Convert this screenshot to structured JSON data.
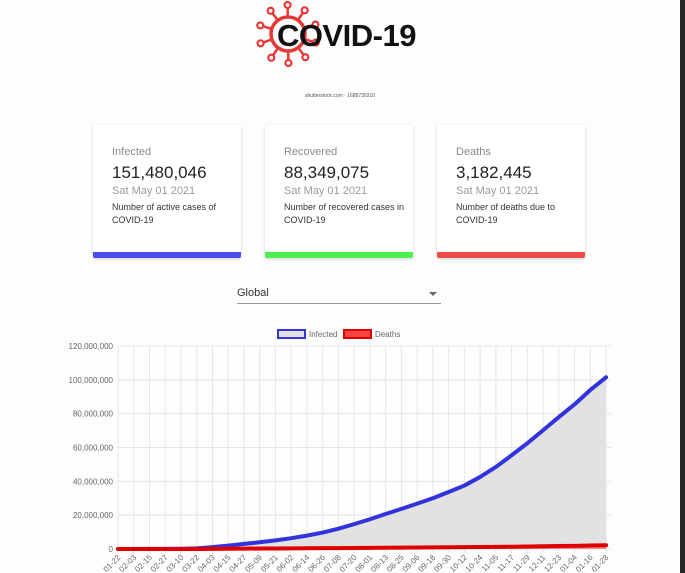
{
  "logo": {
    "text": "COVID-19",
    "watermark": "shutterstock.com · 1688730310",
    "color": "#e53935"
  },
  "cards": [
    {
      "title": "Infected",
      "value": "151,480,046",
      "date": "Sat May 01 2021",
      "description": "Number of active cases of COVID-19",
      "color": "#4b4bf0"
    },
    {
      "title": "Recovered",
      "value": "88,349,075",
      "date": "Sat May 01 2021",
      "description": "Number of recovered cases in COVID-19",
      "color": "#4cf04c"
    },
    {
      "title": "Deaths",
      "value": "3,182,445",
      "date": "Sat May 01 2021",
      "description": "Number of deaths due to COVID-19",
      "color": "#f04b4b"
    }
  ],
  "country_select": {
    "value": "Global"
  },
  "chart_data": {
    "type": "line",
    "legend": {
      "placement": "top",
      "entries": [
        "Infected",
        "Deaths"
      ]
    },
    "grid": true,
    "ylim": [
      0,
      120000000
    ],
    "yticks": [
      "0",
      "20,000,000",
      "40,000,000",
      "60,000,000",
      "80,000,000",
      "100,000,000",
      "120,000,000"
    ],
    "x": [
      "01-22",
      "02-03",
      "02-15",
      "02-27",
      "03-10",
      "03-22",
      "04-03",
      "04-15",
      "04-27",
      "05-09",
      "05-21",
      "06-02",
      "06-14",
      "06-26",
      "07-08",
      "07-20",
      "08-01",
      "08-13",
      "08-25",
      "09-06",
      "09-18",
      "09-30",
      "10-12",
      "10-24",
      "11-05",
      "11-17",
      "11-29",
      "12-11",
      "12-23",
      "01-04",
      "01-16",
      "01-28"
    ],
    "series": [
      {
        "name": "Infected",
        "color": "#3333dd",
        "fill": "#e2e2e2",
        "values": [
          0,
          20000,
          70000,
          80000,
          120000,
          340000,
          1100000,
          2000000,
          3000000,
          4000000,
          5100000,
          6400000,
          7900000,
          9700000,
          12000000,
          14700000,
          17600000,
          20700000,
          23700000,
          26800000,
          30000000,
          33700000,
          37500000,
          42600000,
          48500000,
          55400000,
          62500000,
          70200000,
          78000000,
          85500000,
          94000000,
          101500000
        ]
      },
      {
        "name": "Deaths",
        "color": "#e00000",
        "fill": "#ff4444",
        "values": [
          0,
          0,
          1000,
          3000,
          4000,
          15000,
          60000,
          130000,
          210000,
          280000,
          330000,
          380000,
          430000,
          490000,
          550000,
          610000,
          680000,
          750000,
          810000,
          870000,
          940000,
          1000000,
          1080000,
          1150000,
          1260000,
          1340000,
          1460000,
          1600000,
          1740000,
          1860000,
          2040000,
          2200000
        ]
      }
    ]
  }
}
